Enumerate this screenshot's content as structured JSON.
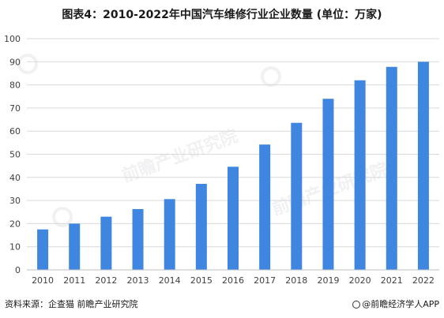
{
  "title": "图表4：2010-2022年中国汽车维修行业企业数量 (单位：万家)",
  "source": "资料来源：企查猫 前瞻产业研究院",
  "brand": "@前瞻经济学人APP",
  "watermark": "前瞻产业研究院",
  "colors": {
    "bar": "#3f86e0",
    "grid": "#d9d9d9",
    "axis": "#bfbfbf",
    "text": "#404040"
  },
  "chart_data": {
    "type": "bar",
    "categories": [
      "2010",
      "2011",
      "2012",
      "2013",
      "2014",
      "2015",
      "2016",
      "2017",
      "2018",
      "2019",
      "2020",
      "2021",
      "2022"
    ],
    "values": [
      17.5,
      20,
      23,
      26.3,
      30.6,
      37.2,
      44.6,
      54.2,
      63.6,
      74,
      82,
      87.8,
      90
    ],
    "title": "图表4：2010-2022年中国汽车维修行业企业数量 (单位：万家)",
    "xlabel": "",
    "ylabel": "",
    "ylim": [
      0,
      100
    ],
    "yticks": [
      0,
      10,
      20,
      30,
      40,
      50,
      60,
      70,
      80,
      90,
      100
    ],
    "grid": true,
    "legend": "none"
  }
}
